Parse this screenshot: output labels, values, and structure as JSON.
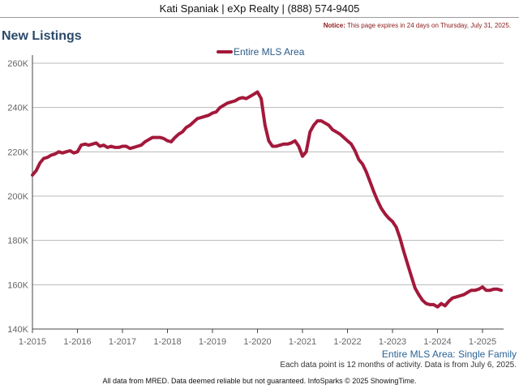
{
  "header": {
    "text": "Kati Spaniak | eXp Realty | (888) 574-9405"
  },
  "title": "New Listings",
  "notice": {
    "label": "Notice:",
    "text": "This page expires in 24 days on Thursday, July 31, 2025."
  },
  "chart_data": {
    "type": "line",
    "title": "",
    "xlabel": "",
    "ylabel": "",
    "x_tick_labels": [
      "1-2015",
      "1-2016",
      "1-2017",
      "1-2018",
      "1-2019",
      "1-2020",
      "1-2021",
      "1-2022",
      "1-2023",
      "1-2024",
      "1-2025"
    ],
    "y_tick_labels": [
      "140K",
      "160K",
      "180K",
      "200K",
      "220K",
      "240K",
      "260K"
    ],
    "ylim": [
      140000,
      260000
    ],
    "xlim": [
      "2015-01",
      "2025-06"
    ],
    "grid": "horizontal",
    "legend_position": "top-center",
    "region_label": "Entire MLS Area: Single Family",
    "series": [
      {
        "name": "Entire MLS Area",
        "color": "#a3193b",
        "points": [
          [
            "2015-01",
            209500
          ],
          [
            "2015-02",
            211500
          ],
          [
            "2015-03",
            215000
          ],
          [
            "2015-04",
            217000
          ],
          [
            "2015-05",
            217500
          ],
          [
            "2015-06",
            218500
          ],
          [
            "2015-07",
            219000
          ],
          [
            "2015-08",
            220000
          ],
          [
            "2015-09",
            219500
          ],
          [
            "2015-10",
            220000
          ],
          [
            "2015-11",
            220500
          ],
          [
            "2015-12",
            219500
          ],
          [
            "2016-01",
            220000
          ],
          [
            "2016-02",
            223000
          ],
          [
            "2016-03",
            223500
          ],
          [
            "2016-04",
            223000
          ],
          [
            "2016-05",
            223500
          ],
          [
            "2016-06",
            224000
          ],
          [
            "2016-07",
            222500
          ],
          [
            "2016-08",
            223000
          ],
          [
            "2016-09",
            222000
          ],
          [
            "2016-10",
            222500
          ],
          [
            "2016-11",
            222000
          ],
          [
            "2016-12",
            222000
          ],
          [
            "2017-01",
            222500
          ],
          [
            "2017-02",
            222500
          ],
          [
            "2017-03",
            221500
          ],
          [
            "2017-04",
            222000
          ],
          [
            "2017-05",
            222500
          ],
          [
            "2017-06",
            223000
          ],
          [
            "2017-07",
            224500
          ],
          [
            "2017-08",
            225500
          ],
          [
            "2017-09",
            226500
          ],
          [
            "2017-10",
            226500
          ],
          [
            "2017-11",
            226500
          ],
          [
            "2017-12",
            226000
          ],
          [
            "2018-01",
            225000
          ],
          [
            "2018-02",
            224500
          ],
          [
            "2018-03",
            226500
          ],
          [
            "2018-04",
            228000
          ],
          [
            "2018-05",
            229000
          ],
          [
            "2018-06",
            231000
          ],
          [
            "2018-07",
            232000
          ],
          [
            "2018-08",
            233500
          ],
          [
            "2018-09",
            235000
          ],
          [
            "2018-10",
            235500
          ],
          [
            "2018-11",
            236000
          ],
          [
            "2018-12",
            236500
          ],
          [
            "2019-01",
            237500
          ],
          [
            "2019-02",
            238000
          ],
          [
            "2019-03",
            240000
          ],
          [
            "2019-04",
            241000
          ],
          [
            "2019-05",
            242000
          ],
          [
            "2019-06",
            242500
          ],
          [
            "2019-07",
            243000
          ],
          [
            "2019-08",
            244000
          ],
          [
            "2019-09",
            244500
          ],
          [
            "2019-10",
            244000
          ],
          [
            "2019-11",
            245000
          ],
          [
            "2019-12",
            246000
          ],
          [
            "2020-01",
            247000
          ],
          [
            "2020-02",
            244000
          ],
          [
            "2020-03",
            232000
          ],
          [
            "2020-04",
            225000
          ],
          [
            "2020-05",
            222500
          ],
          [
            "2020-06",
            222500
          ],
          [
            "2020-07",
            223000
          ],
          [
            "2020-08",
            223500
          ],
          [
            "2020-09",
            223500
          ],
          [
            "2020-10",
            224000
          ],
          [
            "2020-11",
            225000
          ],
          [
            "2020-12",
            222500
          ],
          [
            "2021-01",
            218000
          ],
          [
            "2021-02",
            220000
          ],
          [
            "2021-03",
            229000
          ],
          [
            "2021-04",
            232000
          ],
          [
            "2021-05",
            234000
          ],
          [
            "2021-06",
            234000
          ],
          [
            "2021-07",
            233000
          ],
          [
            "2021-08",
            232000
          ],
          [
            "2021-09",
            230000
          ],
          [
            "2021-10",
            229000
          ],
          [
            "2021-11",
            228000
          ],
          [
            "2021-12",
            226500
          ],
          [
            "2022-01",
            225000
          ],
          [
            "2022-02",
            223500
          ],
          [
            "2022-03",
            220500
          ],
          [
            "2022-04",
            216500
          ],
          [
            "2022-05",
            214500
          ],
          [
            "2022-06",
            211000
          ],
          [
            "2022-07",
            206500
          ],
          [
            "2022-08",
            202000
          ],
          [
            "2022-09",
            198000
          ],
          [
            "2022-10",
            194500
          ],
          [
            "2022-11",
            192000
          ],
          [
            "2022-12",
            190000
          ],
          [
            "2023-01",
            188500
          ],
          [
            "2023-02",
            186000
          ],
          [
            "2023-03",
            181000
          ],
          [
            "2023-04",
            175000
          ],
          [
            "2023-05",
            169500
          ],
          [
            "2023-06",
            164000
          ],
          [
            "2023-07",
            158500
          ],
          [
            "2023-08",
            155500
          ],
          [
            "2023-09",
            153000
          ],
          [
            "2023-10",
            151500
          ],
          [
            "2023-11",
            151000
          ],
          [
            "2023-12",
            151000
          ],
          [
            "2024-01",
            150000
          ],
          [
            "2024-02",
            151500
          ],
          [
            "2024-03",
            150500
          ],
          [
            "2024-04",
            152500
          ],
          [
            "2024-05",
            154000
          ],
          [
            "2024-06",
            154500
          ],
          [
            "2024-07",
            155000
          ],
          [
            "2024-08",
            155500
          ],
          [
            "2024-09",
            156500
          ],
          [
            "2024-10",
            157500
          ],
          [
            "2024-11",
            157500
          ],
          [
            "2024-12",
            158000
          ],
          [
            "2025-01",
            159000
          ],
          [
            "2025-02",
            157500
          ],
          [
            "2025-03",
            157500
          ],
          [
            "2025-04",
            158000
          ],
          [
            "2025-05",
            158000
          ],
          [
            "2025-06",
            157500
          ]
        ]
      }
    ]
  },
  "footnote": "Each data point is 12 months of activity. Data is from July 6, 2025.",
  "footer": "All data from MRED. Data deemed reliable but not guaranteed. InfoSparks © 2025 ShowingTime."
}
